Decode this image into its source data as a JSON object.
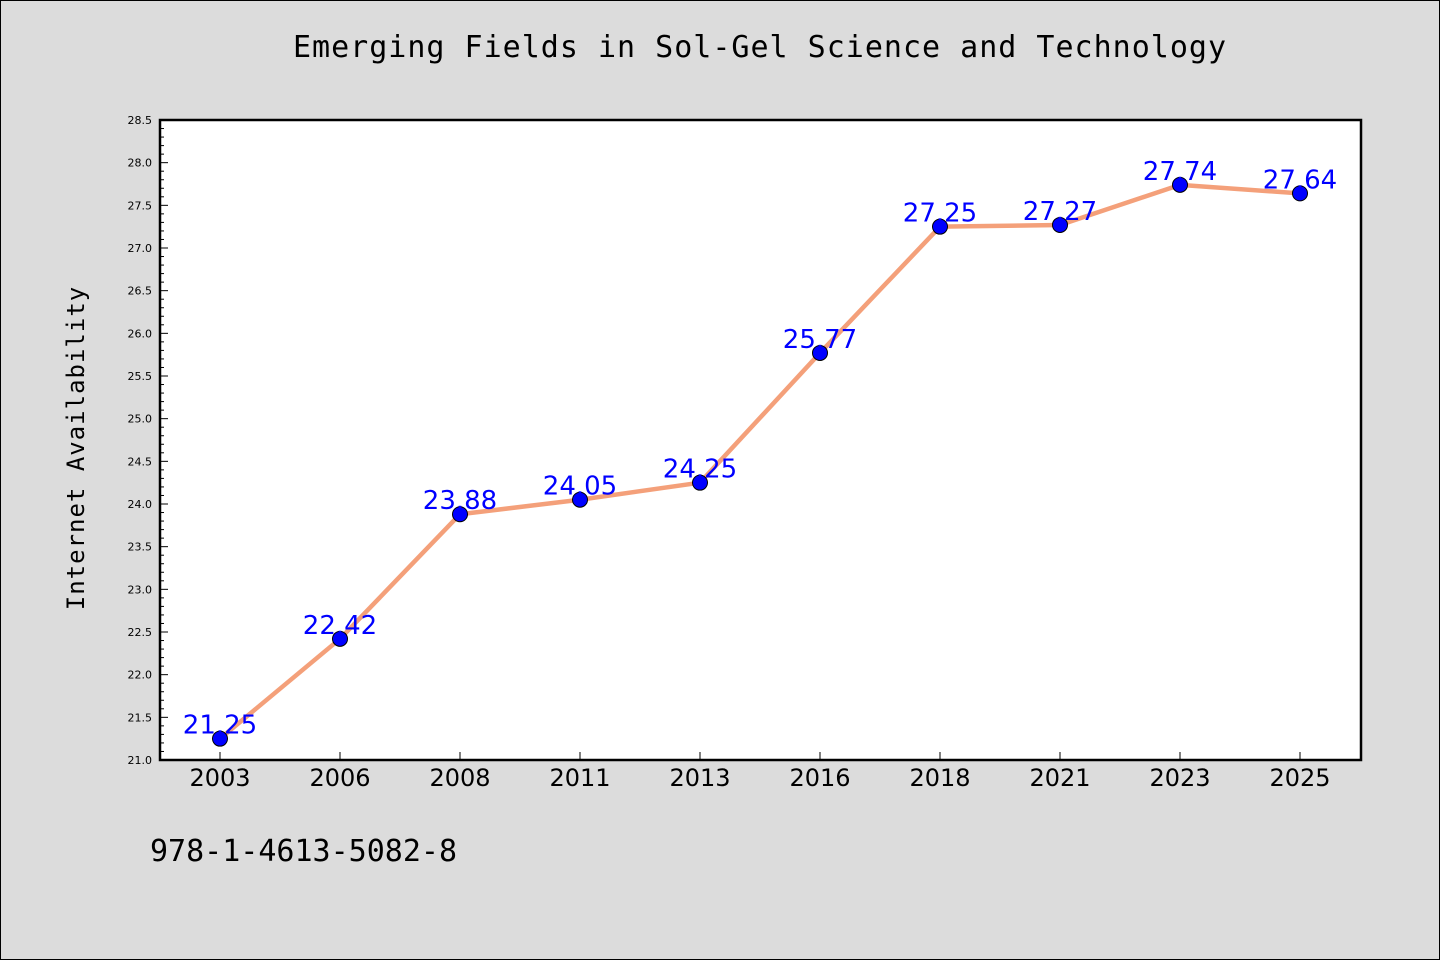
{
  "chart_data": {
    "type": "line",
    "title": "Emerging Fields in Sol-Gel Science and Technology",
    "xlabel": "",
    "ylabel": "Internet Availability",
    "categories": [
      "2003",
      "2006",
      "2008",
      "2011",
      "2013",
      "2016",
      "2018",
      "2021",
      "2023",
      "2025"
    ],
    "values": [
      21.25,
      22.42,
      23.88,
      24.05,
      24.25,
      25.77,
      27.25,
      27.27,
      27.74,
      27.64
    ],
    "ylim": [
      21.0,
      28.5
    ],
    "yticks": [
      "21.0",
      "21.5",
      "22.0",
      "22.5",
      "23.0",
      "23.5",
      "24.0",
      "24.5",
      "25.0",
      "25.5",
      "26.0",
      "26.5",
      "27.0",
      "27.5",
      "28.0",
      "28.5"
    ],
    "grid": false,
    "line_color": "#f4a07a",
    "marker_color": "#0000ff",
    "label_color": "#0000ff",
    "background_color": "#dcdcdc",
    "plot_background_color": "#ffffff"
  },
  "footer": {
    "isbn": "978-1-4613-5082-8"
  }
}
